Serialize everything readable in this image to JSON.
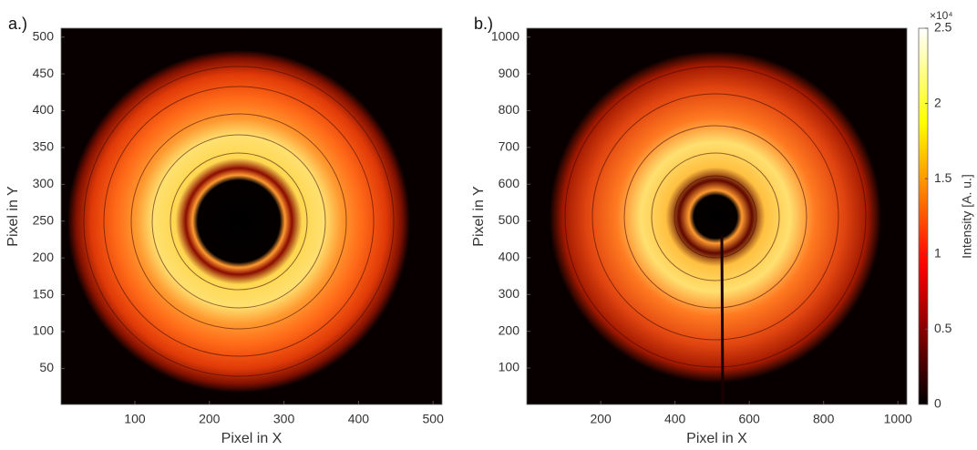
{
  "chart_data": [
    {
      "type": "heatmap",
      "panel_label": "a.)",
      "xlabel": "Pixel in X",
      "ylabel": "Pixel in Y",
      "xlim": [
        1,
        512
      ],
      "ylim": [
        1,
        512
      ],
      "xticks": [
        100,
        200,
        300,
        400,
        500
      ],
      "yticks": [
        50,
        100,
        150,
        200,
        250,
        300,
        350,
        400,
        450,
        500
      ],
      "colormap": "hot"
    },
    {
      "type": "heatmap",
      "panel_label": "b.)",
      "xlabel": "Pixel in X",
      "ylabel": "Pixel in Y",
      "xlim": [
        1,
        1024
      ],
      "ylim": [
        1,
        1024
      ],
      "xticks": [
        200,
        400,
        600,
        800,
        1000
      ],
      "yticks": [
        100,
        200,
        300,
        400,
        500,
        600,
        700,
        800,
        900,
        1000
      ],
      "colormap": "hot",
      "colorbar": {
        "label": "Intensity [A. u.]",
        "offset_label": "×10⁴",
        "clim": [
          0,
          2.5
        ],
        "ticks": [
          0,
          0.5,
          1,
          1.5,
          2,
          2.5
        ]
      }
    }
  ]
}
